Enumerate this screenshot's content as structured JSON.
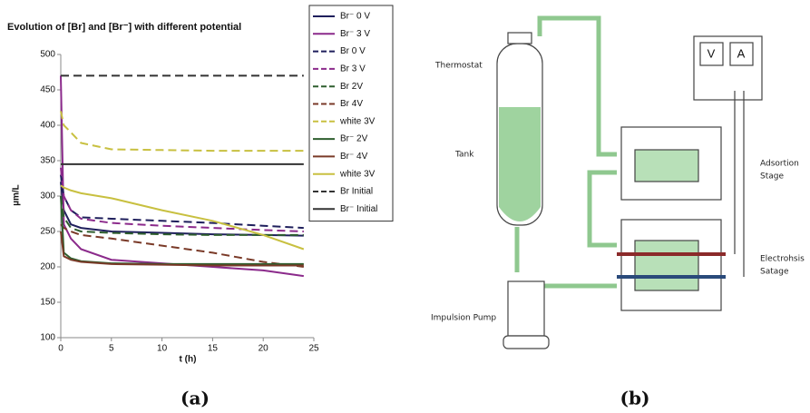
{
  "chart_data": {
    "type": "line",
    "title": "Evolution of [Br] and [Br⁻] with different potential",
    "x_label": "t (h)",
    "y_label": "µm/L",
    "x": [
      0,
      0.3,
      1,
      2,
      5,
      10,
      15,
      20,
      24
    ],
    "xlim": [
      0,
      25
    ],
    "xticks": [
      0,
      5,
      10,
      15,
      20,
      25
    ],
    "ylim": [
      100,
      500
    ],
    "yticks": [
      100,
      150,
      200,
      250,
      300,
      350,
      400,
      450,
      500
    ],
    "grid": false,
    "legend": "right",
    "series": [
      {
        "name": "Br⁻ 0 V",
        "color": "#1f1f5c",
        "style": "solid",
        "values": [
          320,
          280,
          260,
          255,
          250,
          248,
          246,
          245,
          244
        ]
      },
      {
        "name": "Br⁻ 3 V",
        "color": "#8b2a8b",
        "style": "solid",
        "values": [
          470,
          260,
          240,
          225,
          210,
          205,
          200,
          195,
          187
        ]
      },
      {
        "name": "Br 0 V",
        "color": "#1f1f5c",
        "style": "dashed",
        "values": [
          330,
          300,
          280,
          270,
          268,
          265,
          262,
          258,
          255
        ]
      },
      {
        "name": "Br 3 V",
        "color": "#8b2a8b",
        "style": "dashed",
        "values": [
          340,
          300,
          280,
          268,
          262,
          258,
          255,
          252,
          250
        ]
      },
      {
        "name": "Br 2V",
        "color": "#2e5e2e",
        "style": "dashed",
        "values": [
          300,
          270,
          255,
          250,
          248,
          246,
          245,
          245,
          245
        ]
      },
      {
        "name": "Br 4V",
        "color": "#7a3a28",
        "style": "dashed",
        "values": [
          260,
          255,
          250,
          245,
          240,
          230,
          220,
          207,
          200
        ]
      },
      {
        "name": "white 3V",
        "color": "#c8c040",
        "style": "dashed",
        "values": [
          420,
          400,
          390,
          375,
          366,
          365,
          364,
          364,
          364
        ]
      },
      {
        "name": "Br⁻ 2V",
        "color": "#2e5e2e",
        "style": "solid",
        "values": [
          300,
          220,
          212,
          208,
          205,
          204,
          204,
          204,
          204
        ]
      },
      {
        "name": "Br⁻ 4V",
        "color": "#7a3a28",
        "style": "solid",
        "values": [
          250,
          215,
          210,
          207,
          204,
          203,
          202,
          202,
          202
        ]
      },
      {
        "name": "white 3V",
        "color": "#c8c040",
        "style": "solid",
        "values": [
          315,
          312,
          308,
          304,
          297,
          280,
          265,
          245,
          225
        ]
      },
      {
        "name": "Br Initial",
        "color": "#333333",
        "style": "dashed",
        "values": [
          470,
          470,
          470,
          470,
          470,
          470,
          470,
          470,
          470
        ]
      },
      {
        "name": "Br⁻ Initial",
        "color": "#333333",
        "style": "solid",
        "values": [
          345,
          345,
          345,
          345,
          345,
          345,
          345,
          345,
          345
        ]
      }
    ]
  },
  "diagram": {
    "labels": {
      "thermostat": "Thermostat",
      "tank": "Tank",
      "pump": "Impulsion Pump",
      "adsorption_1": "Adsortion",
      "adsorption_2": "Stage",
      "electrolysis_1": "Electrohsis",
      "electrolysis_2": "Satage",
      "voltmeter": "V",
      "ammeter": "A"
    },
    "captions": {
      "a": "(a)",
      "b": "(b)"
    }
  }
}
